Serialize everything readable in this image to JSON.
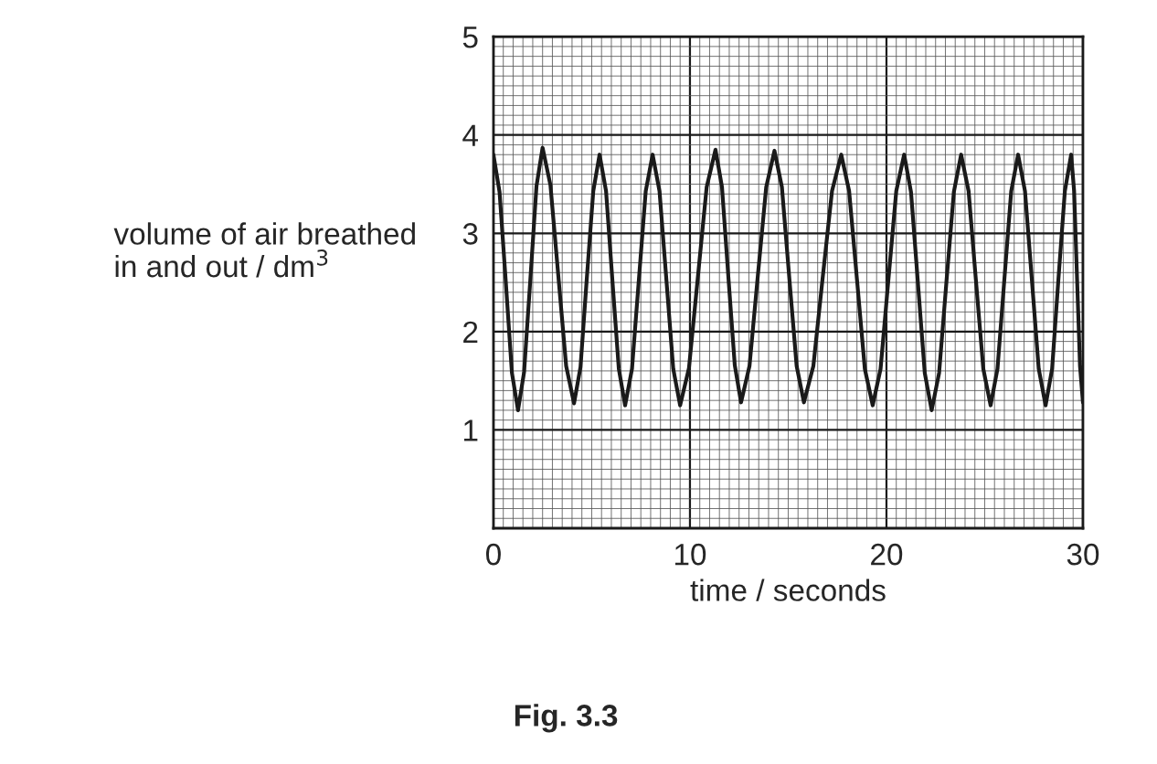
{
  "chart_data": {
    "type": "line",
    "xlabel": "time / seconds",
    "ylabel": "volume of air breathed\nin and out / dm$^{3}$",
    "annotations": [
      "Fig. 3.3"
    ],
    "x": [
      0,
      0.31,
      0.63,
      0.94,
      1.25,
      1.56,
      1.88,
      2.19,
      2.5,
      2.9,
      3.3,
      3.7,
      4.1,
      4.43,
      4.75,
      5.08,
      5.4,
      5.73,
      6.05,
      6.38,
      6.7,
      7.05,
      7.4,
      7.75,
      8.1,
      8.45,
      8.8,
      9.15,
      9.5,
      9.95,
      10.4,
      10.85,
      11.3,
      11.63,
      11.95,
      12.28,
      12.6,
      13.03,
      13.45,
      13.88,
      14.3,
      14.68,
      15.05,
      15.43,
      15.8,
      16.28,
      16.75,
      17.23,
      17.7,
      18.1,
      18.5,
      18.9,
      19.3,
      19.7,
      20.1,
      20.5,
      20.9,
      21.25,
      21.6,
      21.95,
      22.3,
      22.68,
      23.05,
      23.43,
      23.8,
      24.18,
      24.55,
      24.93,
      25.3,
      25.65,
      26.0,
      26.35,
      26.7,
      27.05,
      27.4,
      27.75,
      28.1,
      28.43,
      28.75,
      29.08,
      29.4,
      29.55,
      29.7,
      29.85,
      30
    ],
    "series": [
      {
        "color": "#1a1a1a",
        "values": [
          3.8,
          3.42,
          2.5,
          1.58,
          1.2,
          1.59,
          2.54,
          3.48,
          3.87,
          3.49,
          2.57,
          1.65,
          1.27,
          1.64,
          2.54,
          3.43,
          3.8,
          3.43,
          2.53,
          1.62,
          1.25,
          1.62,
          2.53,
          3.43,
          3.8,
          3.43,
          2.53,
          1.62,
          1.25,
          1.63,
          2.55,
          3.47,
          3.85,
          3.47,
          2.57,
          1.66,
          1.28,
          1.65,
          2.56,
          3.47,
          3.84,
          3.47,
          2.56,
          1.65,
          1.28,
          1.65,
          2.54,
          3.43,
          3.8,
          3.43,
          2.53,
          1.62,
          1.25,
          1.62,
          2.53,
          3.43,
          3.8,
          3.42,
          2.5,
          1.58,
          1.2,
          1.58,
          2.5,
          3.42,
          3.8,
          3.43,
          2.53,
          1.62,
          1.25,
          1.62,
          2.53,
          3.43,
          3.8,
          3.43,
          2.53,
          1.62,
          1.25,
          1.62,
          2.53,
          3.43,
          3.8,
          3.43,
          2.54,
          1.65,
          1.28
        ]
      }
    ],
    "xlim": [
      0,
      30
    ],
    "ylim": [
      0,
      5
    ],
    "xticks": [
      0,
      10,
      20,
      30
    ],
    "yticks": [
      {
        "value": 0,
        "label": null
      },
      1,
      2,
      3,
      4,
      5
    ],
    "grid": true,
    "marker": "none",
    "line_style": "solid",
    "legend": false
  }
}
